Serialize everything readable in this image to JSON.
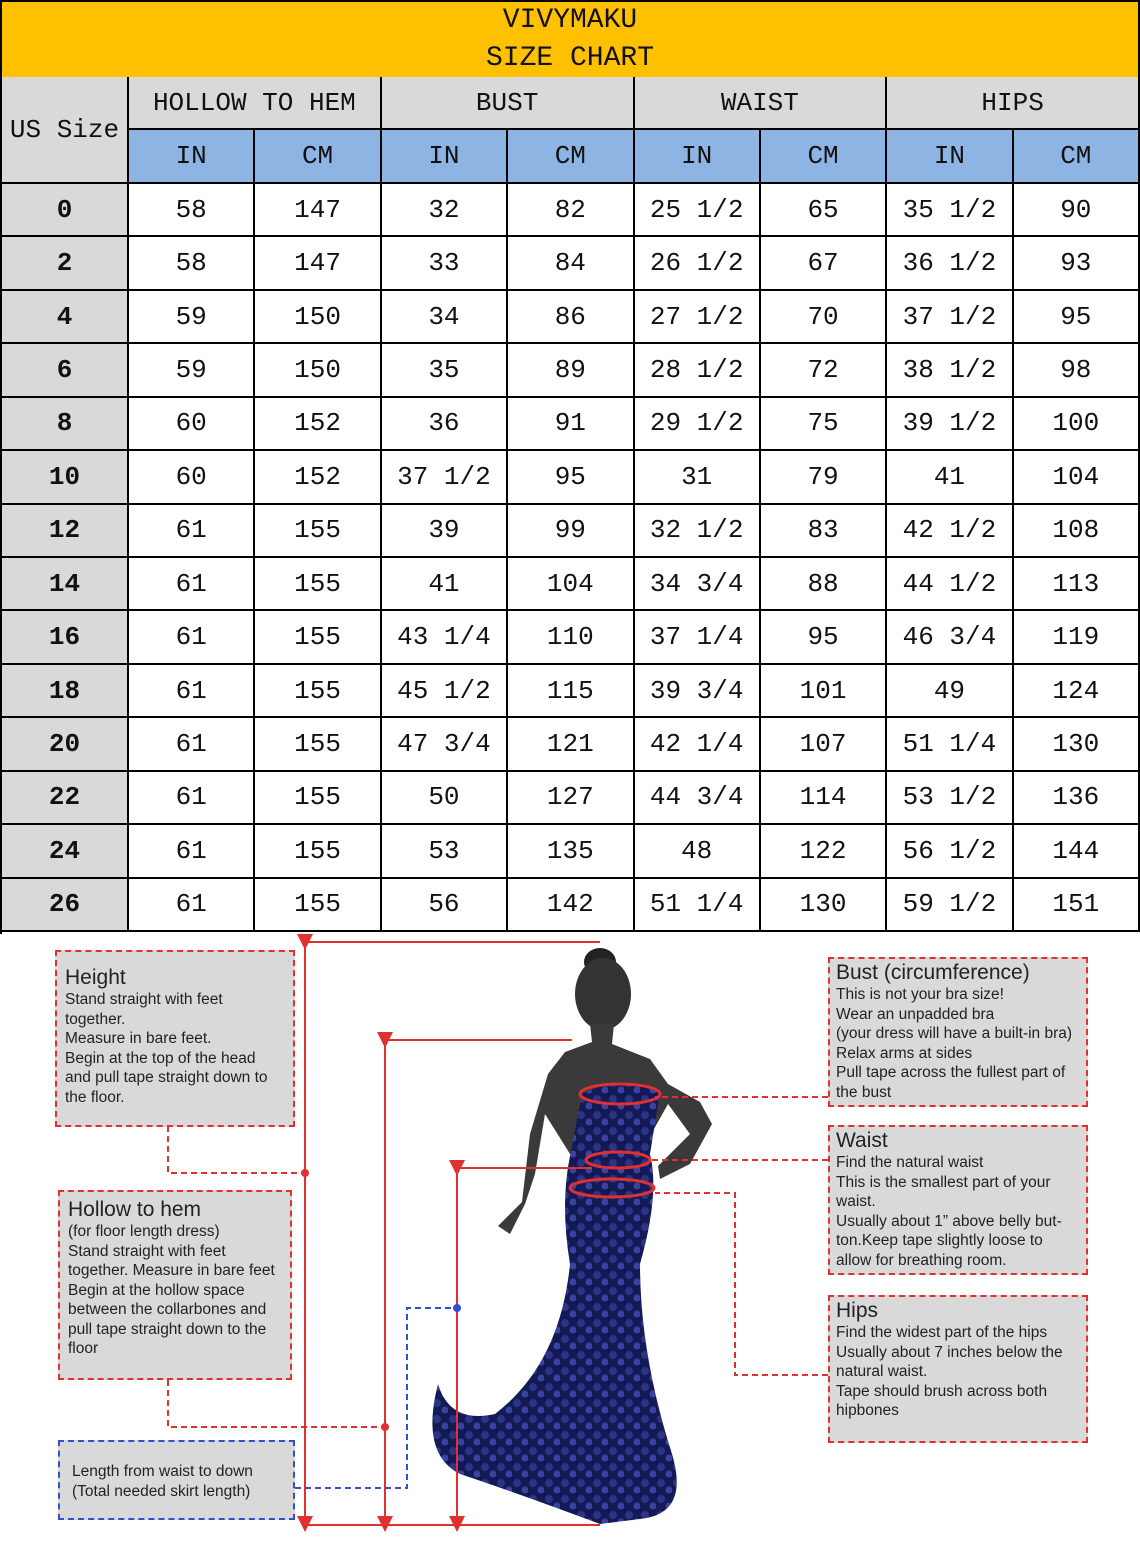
{
  "header": {
    "brand": "VIVYMAKU",
    "title": "SIZE CHART"
  },
  "table": {
    "size_header": "US Size",
    "groups": [
      "HOLLOW TO HEM",
      "BUST",
      "WAIST",
      "HIPS"
    ],
    "units": [
      "IN",
      "CM",
      "IN",
      "CM",
      "IN",
      "CM",
      "IN",
      "CM"
    ],
    "rows": [
      [
        "0",
        "58",
        "147",
        "32",
        "82",
        "25 1/2",
        "65",
        "35 1/2",
        "90"
      ],
      [
        "2",
        "58",
        "147",
        "33",
        "84",
        "26 1/2",
        "67",
        "36 1/2",
        "93"
      ],
      [
        "4",
        "59",
        "150",
        "34",
        "86",
        "27 1/2",
        "70",
        "37 1/2",
        "95"
      ],
      [
        "6",
        "59",
        "150",
        "35",
        "89",
        "28 1/2",
        "72",
        "38 1/2",
        "98"
      ],
      [
        "8",
        "60",
        "152",
        "36",
        "91",
        "29 1/2",
        "75",
        "39 1/2",
        "100"
      ],
      [
        "10",
        "60",
        "152",
        "37 1/2",
        "95",
        "31",
        "79",
        "41",
        "104"
      ],
      [
        "12",
        "61",
        "155",
        "39",
        "99",
        "32 1/2",
        "83",
        "42 1/2",
        "108"
      ],
      [
        "14",
        "61",
        "155",
        "41",
        "104",
        "34 3/4",
        "88",
        "44 1/2",
        "113"
      ],
      [
        "16",
        "61",
        "155",
        "43 1/4",
        "110",
        "37 1/4",
        "95",
        "46 3/4",
        "119"
      ],
      [
        "18",
        "61",
        "155",
        "45 1/2",
        "115",
        "39 3/4",
        "101",
        "49",
        "124"
      ],
      [
        "20",
        "61",
        "155",
        "47 3/4",
        "121",
        "42 1/4",
        "107",
        "51 1/4",
        "130"
      ],
      [
        "22",
        "61",
        "155",
        "50",
        "127",
        "44 3/4",
        "114",
        "53 1/2",
        "136"
      ],
      [
        "24",
        "61",
        "155",
        "53",
        "135",
        "48",
        "122",
        "56 1/2",
        "144"
      ],
      [
        "26",
        "61",
        "155",
        "56",
        "142",
        "51 1/4",
        "130",
        "59 1/2",
        "151"
      ]
    ]
  },
  "guide": {
    "height": {
      "title": "Height",
      "lines": [
        "Stand straight with feet",
        "together.",
        "Measure in bare feet.",
        "Begin at the top of the head",
        "and pull tape straight down to",
        "the floor."
      ]
    },
    "hollow": {
      "title": "Hollow to hem",
      "lines": [
        "(for floor length dress)",
        "Stand straight with feet",
        "together. Measure in bare feet",
        "Begin at the hollow space",
        "between the collarbones and",
        "pull tape straight down to the",
        "floor"
      ]
    },
    "skirt": {
      "lines": [
        "Length from waist to down",
        "(Total needed skirt length)"
      ]
    },
    "bust": {
      "title": "Bust (circumference)",
      "lines": [
        "This is not your bra size!",
        "Wear an unpadded bra",
        "(your dress will have a built-in bra)",
        "Relax arms at sides",
        "Pull tape across the fullest part of",
        "the bust"
      ]
    },
    "waist": {
      "title": "Waist",
      "lines": [
        "Find the natural waist",
        "This is the smallest part of your",
        "waist.",
        "Usually about 1” above belly but-",
        "ton.Keep tape slightly loose to",
        "allow for breathing room."
      ]
    },
    "hips": {
      "title": "Hips",
      "lines": [
        "Find the widest part of the hips",
        "Usually about 7 inches below the",
        "natural waist.",
        "Tape should brush across both",
        "hipbones"
      ]
    }
  }
}
